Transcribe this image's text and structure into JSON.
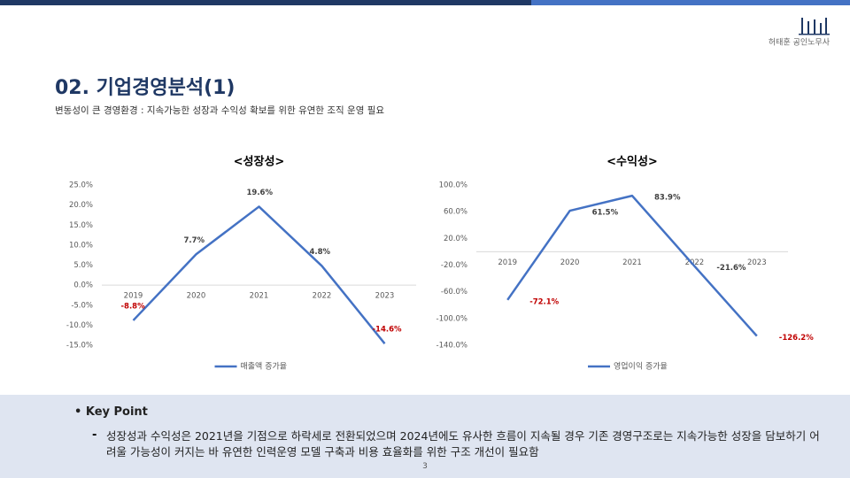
{
  "header": {
    "title": "02. 기업경영분석(1)",
    "subtitle": "변동성이 큰 경영환경 : 지속가능한 성장과 수익성 확보를 위한 유연한 조직 운영 필요",
    "brand": "허태훈 공인노무사"
  },
  "chart_data": [
    {
      "type": "line",
      "title": "<성장성>",
      "categories": [
        "2019",
        "2020",
        "2021",
        "2022",
        "2023"
      ],
      "series": [
        {
          "name": "매출액 증가율",
          "color": "#4472c4",
          "values": [
            -8.8,
            7.7,
            19.6,
            4.8,
            -14.6
          ],
          "value_labels": [
            "-8.8%",
            "7.7%",
            "19.6%",
            "4.8%",
            "-14.6%"
          ],
          "value_label_colors": [
            "#c00000",
            "#404040",
            "#404040",
            "#404040",
            "#c00000"
          ]
        }
      ],
      "ylim": [
        -15,
        25
      ],
      "yticks": [
        {
          "value": -15,
          "label": "-15.0%"
        },
        {
          "value": -10,
          "label": "-10.0%"
        },
        {
          "value": -5,
          "label": "-5.0%"
        },
        {
          "value": 0,
          "label": "0.0%"
        },
        {
          "value": 5,
          "label": "5.0%"
        },
        {
          "value": 10,
          "label": "10.0%"
        },
        {
          "value": 15,
          "label": "15.0%"
        },
        {
          "value": 20,
          "label": "20.0%"
        },
        {
          "value": 25,
          "label": "25.0%"
        }
      ],
      "legend": "bottom"
    },
    {
      "type": "line",
      "title": "<수익성>",
      "categories": [
        "2019",
        "2020",
        "2021",
        "2022",
        "2023"
      ],
      "series": [
        {
          "name": "영업이익 증가율",
          "color": "#4472c4",
          "values": [
            -72.1,
            61.5,
            83.9,
            -21.6,
            -126.2
          ],
          "value_labels": [
            "-72.1%",
            "61.5%",
            "83.9%",
            "-21.6%",
            "-126.2%"
          ],
          "value_label_colors": [
            "#c00000",
            "#404040",
            "#404040",
            "#404040",
            "#c00000"
          ]
        }
      ],
      "ylim": [
        -140,
        100
      ],
      "yticks": [
        {
          "value": -140,
          "label": "-140.0%"
        },
        {
          "value": -100,
          "label": "-100.0%"
        },
        {
          "value": -60,
          "label": "-60.0%"
        },
        {
          "value": -20,
          "label": "-20.0%"
        },
        {
          "value": 20,
          "label": "20.0%"
        },
        {
          "value": 60,
          "label": "60.0%"
        },
        {
          "value": 100,
          "label": "100.0%"
        }
      ],
      "legend": "bottom"
    }
  ],
  "key_point": {
    "heading": "Key Point",
    "text": "성장성과 수익성은 2021년을 기점으로 하락세로 전환되었으며 2024년에도 유사한 흐름이 지속될 경우 기존 경영구조로는 지속가능한 성장을 담보하기 어려울 가능성이 커지는 바 유연한 인력운영 모델 구축과 비용 효율화를 위한 구조 개선이 필요함"
  },
  "page_number": "3"
}
